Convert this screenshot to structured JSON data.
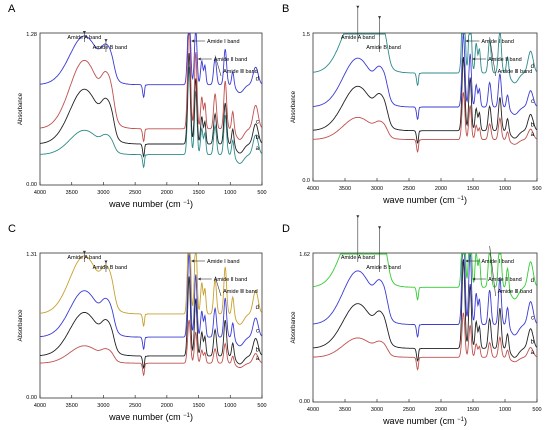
{
  "chart_data": [
    {
      "panel": "A",
      "type": "line",
      "xlabel": "wave number (cm ",
      "xlabel_sup": "−1",
      "xlabel_end": ")",
      "ylabel": "Absorbance",
      "xlim": [
        4000,
        500
      ],
      "ylim": [
        0.0,
        1.28
      ],
      "x_ticks": [
        4000,
        3500,
        3000,
        2500,
        2000,
        1500,
        1000,
        500
      ],
      "y_tick_labels": [
        "1.28",
        "0.00"
      ],
      "annotations": [
        "Amide A band",
        "Amide B band",
        "Amide Ⅰ band",
        "Amide Ⅱ band",
        "Amide Ⅲ band"
      ],
      "series": [
        {
          "name": "a",
          "color": "#2e8b8b",
          "offset": 0.2,
          "amideA": 0.16,
          "amide1": 0.58
        },
        {
          "name": "b",
          "color": "#222222",
          "offset": 0.27,
          "amideA": 0.36,
          "amide1": 0.6
        },
        {
          "name": "c",
          "color": "#c0504d",
          "offset": 0.37,
          "amideA": 0.45,
          "amide1": 0.7
        },
        {
          "name": "d",
          "color": "#3b3bd6",
          "offset": 0.66,
          "amideA": 0.32,
          "amide1": 0.52
        }
      ]
    },
    {
      "panel": "B",
      "type": "line",
      "xlabel": "wave number (cm ",
      "xlabel_sup": "−1",
      "xlabel_end": ")",
      "ylabel": "Absorbance",
      "xlim": [
        4000,
        500
      ],
      "ylim": [
        0.0,
        1.5
      ],
      "x_ticks": [
        4000,
        3500,
        3000,
        2500,
        2000,
        1500,
        1000,
        500
      ],
      "y_tick_labels": [
        "1.5",
        "0.0"
      ],
      "annotations": [
        "Amide A band",
        "Amide B band",
        "Amide Ⅰ band",
        "Amide Ⅱ band",
        "Amide Ⅲ band"
      ],
      "series": [
        {
          "name": "a",
          "color": "#c0504d",
          "offset": 0.28,
          "amideA": 0.15,
          "amide1": 0.32
        },
        {
          "name": "b",
          "color": "#222222",
          "offset": 0.34,
          "amideA": 0.3,
          "amide1": 0.5
        },
        {
          "name": "c",
          "color": "#3b3bd6",
          "offset": 0.5,
          "amideA": 0.33,
          "amide1": 0.5
        },
        {
          "name": "d",
          "color": "#2e8b8b",
          "offset": 0.73,
          "amideA": 0.42,
          "amide1": 0.67
        }
      ]
    },
    {
      "panel": "C",
      "type": "line",
      "xlabel": "wave number (cm ",
      "xlabel_sup": "−1",
      "xlabel_end": ")",
      "ylabel": "Absorbance",
      "xlim": [
        4000,
        500
      ],
      "ylim": [
        0.0,
        1.31
      ],
      "x_ticks": [
        4000,
        3500,
        3000,
        2500,
        2000,
        1500,
        1000,
        500
      ],
      "y_tick_labels": [
        "1.31",
        "0.00"
      ],
      "annotations": [
        "Amide A band",
        "Amide B band",
        "Amide Ⅰ band",
        "Amide Ⅱ band",
        "Amide Ⅲ band"
      ],
      "series": [
        {
          "name": "a",
          "color": "#c0504d",
          "offset": 0.24,
          "amideA": 0.12,
          "amide1": 0.3
        },
        {
          "name": "b",
          "color": "#222222",
          "offset": 0.29,
          "amideA": 0.3,
          "amide1": 0.55
        },
        {
          "name": "c",
          "color": "#3b3bd6",
          "offset": 0.42,
          "amideA": 0.32,
          "amide1": 0.6
        },
        {
          "name": "d",
          "color": "#c8a030",
          "offset": 0.58,
          "amideA": 0.4,
          "amide1": 0.72
        }
      ]
    },
    {
      "panel": "D",
      "type": "line",
      "xlabel": "wave number (cm ",
      "xlabel_sup": "−1",
      "xlabel_end": ")",
      "ylabel": "Absorbance",
      "xlim": [
        4000,
        500
      ],
      "ylim": [
        0.0,
        1.62
      ],
      "x_ticks": [
        4000,
        3500,
        3000,
        2500,
        2000,
        1500,
        1000,
        500
      ],
      "y_tick_labels": [
        "1.62",
        "0.00"
      ],
      "annotations": [
        "Amide A band",
        "Amide B band",
        "Amide Ⅰ band",
        "Amide Ⅱ band",
        "Amide Ⅲ band"
      ],
      "series": [
        {
          "name": "a",
          "color": "#c0504d",
          "offset": 0.3,
          "amideA": 0.13,
          "amide1": 0.3
        },
        {
          "name": "b",
          "color": "#222222",
          "offset": 0.36,
          "amideA": 0.3,
          "amide1": 0.6
        },
        {
          "name": "c",
          "color": "#3b3bd6",
          "offset": 0.52,
          "amideA": 0.36,
          "amide1": 0.7
        },
        {
          "name": "d",
          "color": "#33cc33",
          "offset": 0.77,
          "amideA": 0.45,
          "amide1": 0.78
        }
      ]
    }
  ]
}
